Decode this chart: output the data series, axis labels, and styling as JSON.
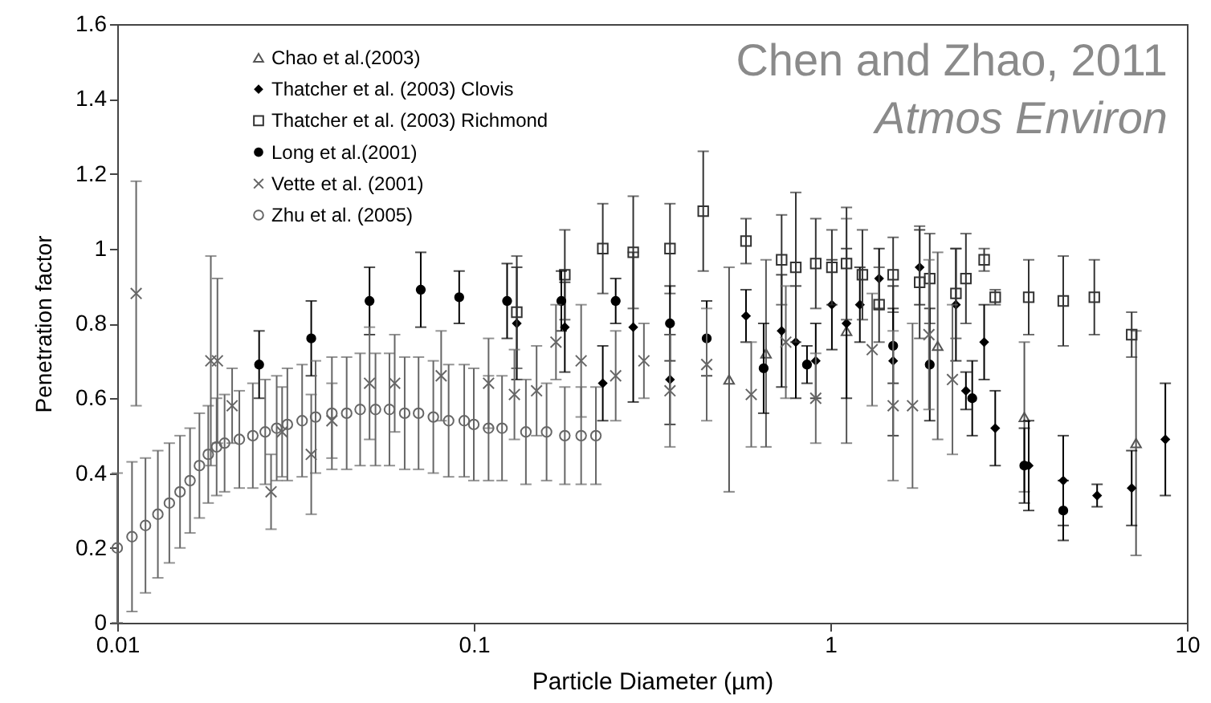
{
  "chart_data": {
    "type": "scatter",
    "xlabel": "Particle Diameter (µm)",
    "ylabel": "Penetration factor",
    "log": "x",
    "xlim": [
      0.01,
      10
    ],
    "xticks": [
      0.01,
      0.1,
      1,
      10
    ],
    "ylim": [
      0,
      1.6
    ],
    "yticks": [
      0,
      0.2,
      0.4,
      0.6,
      0.8,
      1,
      1.2,
      1.4,
      1.6
    ],
    "legend": "top left",
    "annotations": [
      "Chen and Zhao, 2011",
      "Atmos Environ"
    ],
    "series": [
      {
        "name": "Chao et al.(2003)",
        "color": "#555555",
        "marker": "triangle",
        "x": [
          0.52,
          0.66,
          1.11,
          2.0,
          3.5,
          7.2
        ],
        "values": [
          0.65,
          0.72,
          0.78,
          0.74,
          0.55,
          0.48
        ],
        "errors": [
          0.3,
          0.25,
          0.3,
          0.25,
          0.2,
          0.3
        ]
      },
      {
        "name": "Thatcher et al. (2003) Clovis",
        "color": "#000000",
        "marker": "diamond",
        "x": [
          0.132,
          0.18,
          0.23,
          0.28,
          0.355,
          0.58,
          0.73,
          0.8,
          0.91,
          1.01,
          1.11,
          1.21,
          1.37,
          1.5,
          1.78,
          2.25,
          2.4,
          2.7,
          2.9,
          3.6,
          4.5,
          5.6,
          7.0,
          8.7
        ],
        "values": [
          0.8,
          0.79,
          0.64,
          0.79,
          0.65,
          0.82,
          0.78,
          0.75,
          0.7,
          0.85,
          0.8,
          0.85,
          0.92,
          0.7,
          0.95,
          0.85,
          0.62,
          0.75,
          0.52,
          0.42,
          0.38,
          0.34,
          0.36,
          0.49
        ],
        "errors": [
          0.15,
          0.12,
          0.1,
          0.2,
          0.12,
          0.07,
          0.15,
          0.15,
          0.1,
          0.12,
          0.2,
          0.1,
          0.08,
          0.2,
          0.1,
          0.15,
          0.05,
          0.1,
          0.1,
          0.12,
          0.12,
          0.03,
          0.1,
          0.15
        ]
      },
      {
        "name": "Thatcher et al. (2003) Richmond",
        "color": "#333333",
        "marker": "square",
        "x": [
          0.132,
          0.18,
          0.23,
          0.28,
          0.355,
          0.44,
          0.58,
          0.73,
          0.8,
          0.91,
          1.01,
          1.11,
          1.23,
          1.37,
          1.5,
          1.78,
          1.9,
          2.25,
          2.4,
          2.7,
          2.9,
          3.6,
          4.5,
          5.5,
          7.0
        ],
        "values": [
          0.83,
          0.93,
          1.0,
          0.99,
          1.0,
          1.1,
          1.02,
          0.97,
          0.95,
          0.96,
          0.95,
          0.96,
          0.93,
          0.85,
          0.93,
          0.91,
          0.92,
          0.88,
          0.92,
          0.97,
          0.87,
          0.87,
          0.86,
          0.87,
          0.77
        ],
        "errors": [
          0.15,
          0.12,
          0.12,
          0.15,
          0.12,
          0.16,
          0.06,
          0.12,
          0.2,
          0.12,
          0.1,
          0.15,
          0.12,
          0.1,
          0.1,
          0.15,
          0.12,
          0.12,
          0.12,
          0.03,
          0.02,
          0.1,
          0.12,
          0.1,
          0.06
        ]
      },
      {
        "name": "Long et al.(2001)",
        "color": "#000000",
        "marker": "circle",
        "x": [
          0.025,
          0.035,
          0.051,
          0.071,
          0.091,
          0.124,
          0.176,
          0.25,
          0.355,
          0.45,
          0.65,
          0.86,
          1.5,
          1.9,
          2.5,
          3.5,
          4.5
        ],
        "values": [
          0.69,
          0.76,
          0.86,
          0.89,
          0.87,
          0.86,
          0.86,
          0.86,
          0.8,
          0.76,
          0.68,
          0.69,
          0.74,
          0.69,
          0.6,
          0.42,
          0.3
        ],
        "errors": [
          0.09,
          0.1,
          0.09,
          0.1,
          0.07,
          0.1,
          0.08,
          0.06,
          0.1,
          0.1,
          0.12,
          0.05,
          0.1,
          0.15,
          0.1,
          0.1,
          0.08
        ]
      },
      {
        "name": "Vette et al. (2001)",
        "color": "#666666",
        "marker": "cross",
        "x": [
          0.0113,
          0.0183,
          0.0191,
          0.021,
          0.027,
          0.029,
          0.035,
          0.04,
          0.051,
          0.06,
          0.081,
          0.11,
          0.13,
          0.15,
          0.17,
          0.2,
          0.25,
          0.3,
          0.355,
          0.45,
          0.6,
          0.75,
          0.91,
          1.31,
          1.5,
          1.7,
          1.89,
          2.2
        ],
        "values": [
          0.88,
          0.7,
          0.7,
          0.58,
          0.35,
          0.51,
          0.45,
          0.54,
          0.64,
          0.64,
          0.66,
          0.64,
          0.61,
          0.62,
          0.75,
          0.7,
          0.66,
          0.7,
          0.62,
          0.69,
          0.61,
          0.75,
          0.6,
          0.73,
          0.58,
          0.58,
          0.77,
          0.65
        ],
        "errors": [
          0.3,
          0.28,
          0.22,
          0.1,
          0.1,
          0.12,
          0.16,
          0.1,
          0.15,
          0.13,
          0.12,
          0.12,
          0.12,
          0.12,
          0.1,
          0.15,
          0.12,
          0.1,
          0.15,
          0.15,
          0.14,
          0.15,
          0.12,
          0.15,
          0.2,
          0.22,
          0.2,
          0.2
        ]
      },
      {
        "name": "Zhu et al. (2005)",
        "color": "#666666",
        "marker": "circle",
        "x": [
          0.01,
          0.011,
          0.012,
          0.013,
          0.014,
          0.015,
          0.016,
          0.017,
          0.018,
          0.019,
          0.02,
          0.022,
          0.024,
          0.026,
          0.028,
          0.03,
          0.033,
          0.036,
          0.04,
          0.044,
          0.048,
          0.053,
          0.058,
          0.064,
          0.07,
          0.077,
          0.085,
          0.094,
          0.1,
          0.11,
          0.12,
          0.14,
          0.16,
          0.18,
          0.2,
          0.22
        ],
        "values": [
          0.2,
          0.23,
          0.26,
          0.29,
          0.32,
          0.35,
          0.38,
          0.42,
          0.45,
          0.47,
          0.48,
          0.49,
          0.5,
          0.51,
          0.52,
          0.53,
          0.54,
          0.55,
          0.56,
          0.56,
          0.57,
          0.57,
          0.57,
          0.56,
          0.56,
          0.55,
          0.54,
          0.54,
          0.53,
          0.52,
          0.52,
          0.51,
          0.51,
          0.5,
          0.5,
          0.5
        ],
        "errors": [
          0.2,
          0.2,
          0.18,
          0.17,
          0.16,
          0.15,
          0.14,
          0.14,
          0.13,
          0.13,
          0.13,
          0.13,
          0.14,
          0.14,
          0.14,
          0.15,
          0.15,
          0.15,
          0.15,
          0.15,
          0.15,
          0.15,
          0.15,
          0.15,
          0.15,
          0.15,
          0.15,
          0.15,
          0.15,
          0.14,
          0.14,
          0.14,
          0.13,
          0.13,
          0.13,
          0.13
        ]
      }
    ]
  }
}
